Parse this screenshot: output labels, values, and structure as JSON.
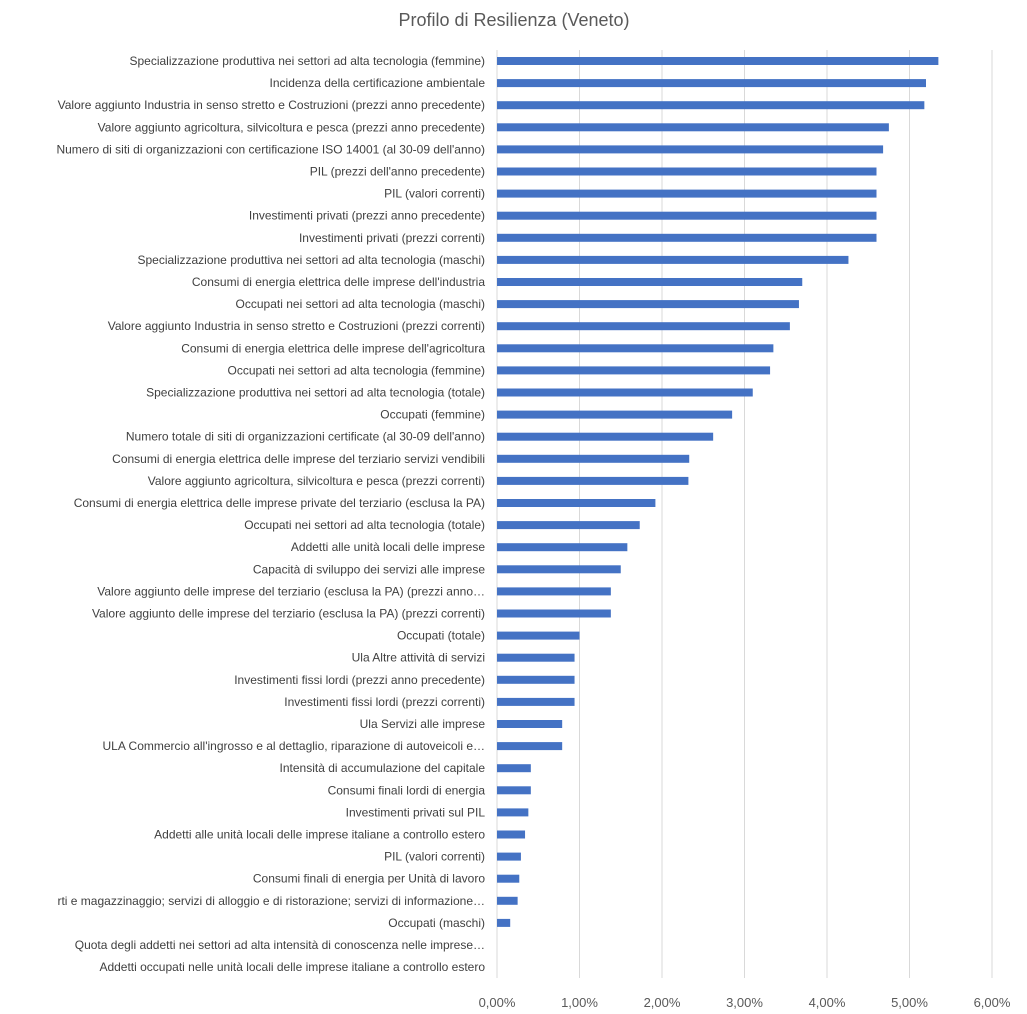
{
  "chart_data": {
    "type": "bar",
    "orientation": "horizontal",
    "title": "Profilo di Resilienza (Veneto)",
    "xlabel": "",
    "ylabel": "",
    "xlim": [
      0,
      6
    ],
    "x_ticks": [
      "0,00%",
      "1,00%",
      "2,00%",
      "3,00%",
      "4,00%",
      "5,00%",
      "6,00%"
    ],
    "grid": "vertical",
    "bar_color": "#4472c4",
    "categories": [
      "Specializzazione produttiva nei settori ad alta tecnologia (femmine)",
      "Incidenza della certificazione ambientale",
      "Valore aggiunto Industria in senso stretto e Costruzioni (prezzi anno precedente)",
      "Valore aggiunto agricoltura, silvicoltura e pesca (prezzi anno precedente)",
      "Numero di siti di organizzazioni con certificazione ISO 14001 (al 30-09 dell'anno)",
      "PIL (prezzi dell'anno precedente)",
      "PIL (valori correnti)",
      "Investimenti privati (prezzi anno precedente)",
      "Investimenti privati (prezzi correnti)",
      "Specializzazione produttiva nei settori ad alta tecnologia (maschi)",
      "Consumi di energia elettrica delle imprese dell'industria",
      "Occupati nei settori ad alta tecnologia (maschi)",
      "Valore aggiunto Industria in senso stretto e Costruzioni (prezzi correnti)",
      "Consumi di energia elettrica delle imprese dell'agricoltura",
      "Occupati nei settori ad alta tecnologia (femmine)",
      "Specializzazione produttiva nei settori ad alta tecnologia (totale)",
      "Occupati (femmine)",
      "Numero totale di siti di organizzazioni certificate (al 30-09 dell'anno)",
      "Consumi di energia elettrica delle imprese del terziario servizi vendibili",
      "Valore aggiunto agricoltura, silvicoltura e pesca (prezzi correnti)",
      "Consumi di energia elettrica delle imprese private del terziario (esclusa la PA)",
      "Occupati nei settori ad alta tecnologia (totale)",
      "Addetti alle unità locali delle imprese",
      "Capacità di sviluppo dei servizi alle imprese",
      "Valore aggiunto delle imprese del terziario (esclusa la PA) (prezzi anno…",
      "Valore aggiunto delle imprese del terziario (esclusa la PA) (prezzi correnti)",
      "Occupati (totale)",
      "Ula Altre attività di servizi",
      "Investimenti fissi lordi (prezzi anno precedente)",
      "Investimenti fissi lordi (prezzi correnti)",
      "Ula Servizi alle imprese",
      "ULA Commercio all'ingrosso e al dettaglio, riparazione di autoveicoli e…",
      "Intensità di accumulazione del capitale",
      "Consumi finali lordi di energia",
      "Investimenti privati sul PIL",
      "Addetti alle unità locali delle imprese italiane a controllo estero",
      "PIL (valori correnti)",
      "Consumi finali di energia per Unità di lavoro",
      "rti e magazzinaggio; servizi di alloggio e di ristorazione; servizi di informazione…",
      "Occupati (maschi)",
      "Quota degli addetti nei settori ad alta intensità di conoscenza nelle imprese…",
      "Addetti occupati nelle unità locali delle imprese italiane a controllo estero"
    ],
    "values": [
      5.35,
      5.2,
      5.18,
      4.75,
      4.68,
      4.6,
      4.6,
      4.6,
      4.6,
      4.26,
      3.7,
      3.66,
      3.55,
      3.35,
      3.31,
      3.1,
      2.85,
      2.62,
      2.33,
      2.32,
      1.92,
      1.73,
      1.58,
      1.5,
      1.38,
      1.38,
      1.0,
      0.94,
      0.94,
      0.94,
      0.79,
      0.79,
      0.41,
      0.41,
      0.38,
      0.34,
      0.29,
      0.27,
      0.25,
      0.16,
      0.0,
      0.0
    ]
  }
}
